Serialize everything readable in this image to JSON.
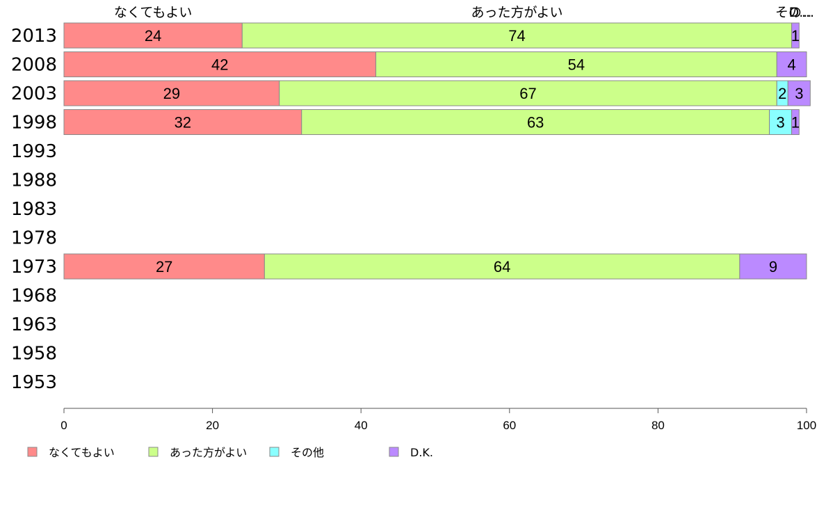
{
  "chart_data": {
    "type": "bar",
    "orientation": "horizontal",
    "stacked": true,
    "categories": [
      "2013",
      "2008",
      "2003",
      "1998",
      "1993",
      "1988",
      "1983",
      "1978",
      "1973",
      "1968",
      "1963",
      "1958",
      "1953"
    ],
    "series": [
      {
        "name": "なくてもよい",
        "color": "#ff8a8a",
        "values": [
          24,
          42,
          29,
          32,
          null,
          null,
          null,
          null,
          27,
          null,
          null,
          null,
          null
        ]
      },
      {
        "name": "あった方がよい",
        "color": "#ccff8a",
        "values": [
          74,
          54,
          67,
          63,
          null,
          null,
          null,
          null,
          64,
          null,
          null,
          null,
          null
        ]
      },
      {
        "name": "その他",
        "color": "#8affff",
        "values": [
          0,
          0,
          1.5,
          3,
          null,
          null,
          null,
          null,
          0,
          null,
          null,
          null,
          null
        ]
      },
      {
        "name": "D.K.",
        "color": "#bb8aff",
        "values": [
          1,
          4,
          3,
          1,
          null,
          null,
          null,
          null,
          9,
          null,
          null,
          null,
          null
        ]
      }
    ],
    "value_labels": [
      [
        "24",
        "42",
        "29",
        "32",
        "",
        "",
        "",
        "",
        "27",
        "",
        "",
        "",
        ""
      ],
      [
        "74",
        "54",
        "67",
        "63",
        "",
        "",
        "",
        "",
        "64",
        "",
        "",
        "",
        ""
      ],
      [
        "",
        "",
        "2",
        "3",
        "",
        "",
        "",
        "",
        "",
        "",
        "",
        "",
        ""
      ],
      [
        "1",
        "4",
        "3",
        "1",
        "",
        "",
        "",
        "",
        "9",
        "",
        "",
        "",
        ""
      ]
    ],
    "top_labels": [
      "なくてもよい",
      "あった方がよい",
      "その...",
      "D..."
    ],
    "xlim": [
      0,
      100
    ],
    "xticks": [
      "0",
      "20",
      "40",
      "60",
      "80",
      "100"
    ],
    "legend_position": "bottom-left",
    "grid": false
  }
}
